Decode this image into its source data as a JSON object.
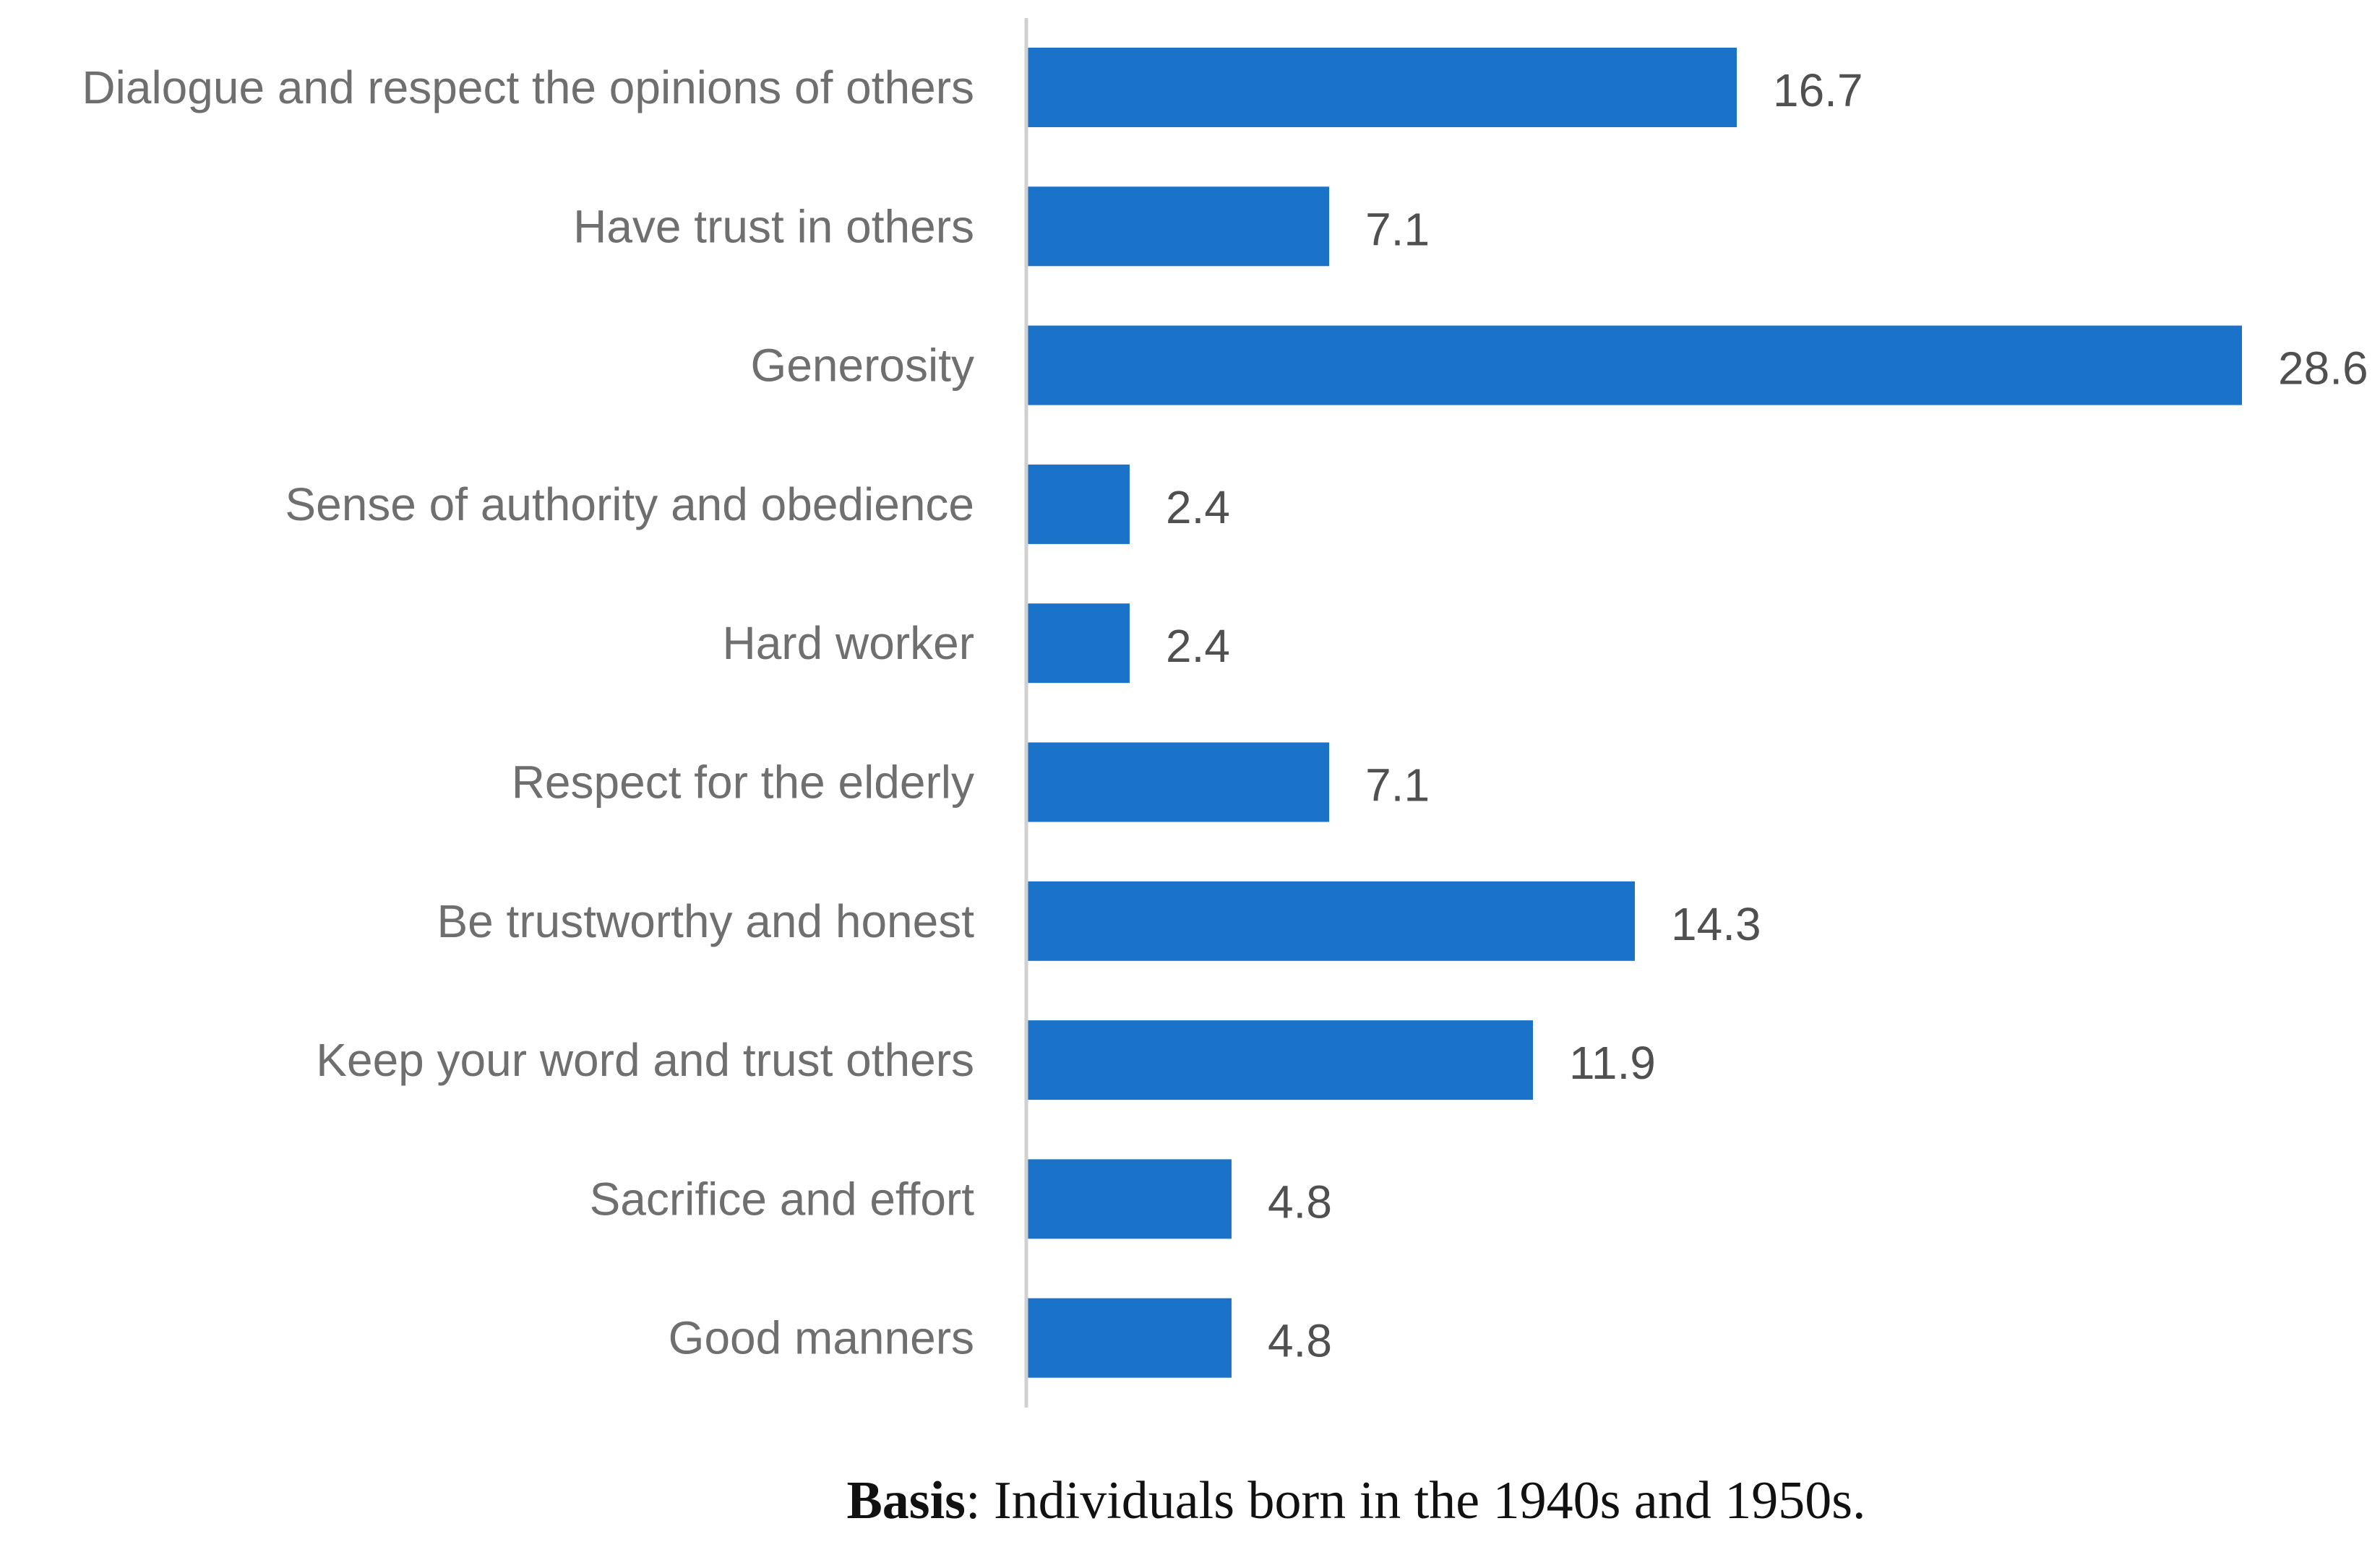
{
  "chart_data": {
    "type": "bar",
    "orientation": "horizontal",
    "title": "",
    "xlabel": "",
    "ylabel": "",
    "xlim": [
      0,
      28.6
    ],
    "grid": false,
    "legend": "none",
    "bar_color": "#1a73c9",
    "axis_color": "#d0d0d0",
    "categories": [
      "Dialogue and respect the opinions of others",
      "Have trust in others",
      "Generosity",
      "Sense of authority and obedience",
      "Hard worker",
      "Respect for the elderly",
      "Be trustworthy and honest",
      "Keep your word and trust others",
      "Sacrifice and effort",
      "Good manners"
    ],
    "values": [
      16.7,
      7.1,
      28.6,
      2.4,
      2.4,
      7.1,
      14.3,
      11.9,
      4.8,
      4.8
    ],
    "value_labels": [
      "16.7",
      "7.1",
      "28.6",
      "2.4",
      "2.4",
      "7.1",
      "14.3",
      "11.9",
      "4.8",
      "4.8"
    ]
  },
  "caption": {
    "label": "Basis",
    "text": ": Individuals born in the 1940s and 1950s."
  }
}
